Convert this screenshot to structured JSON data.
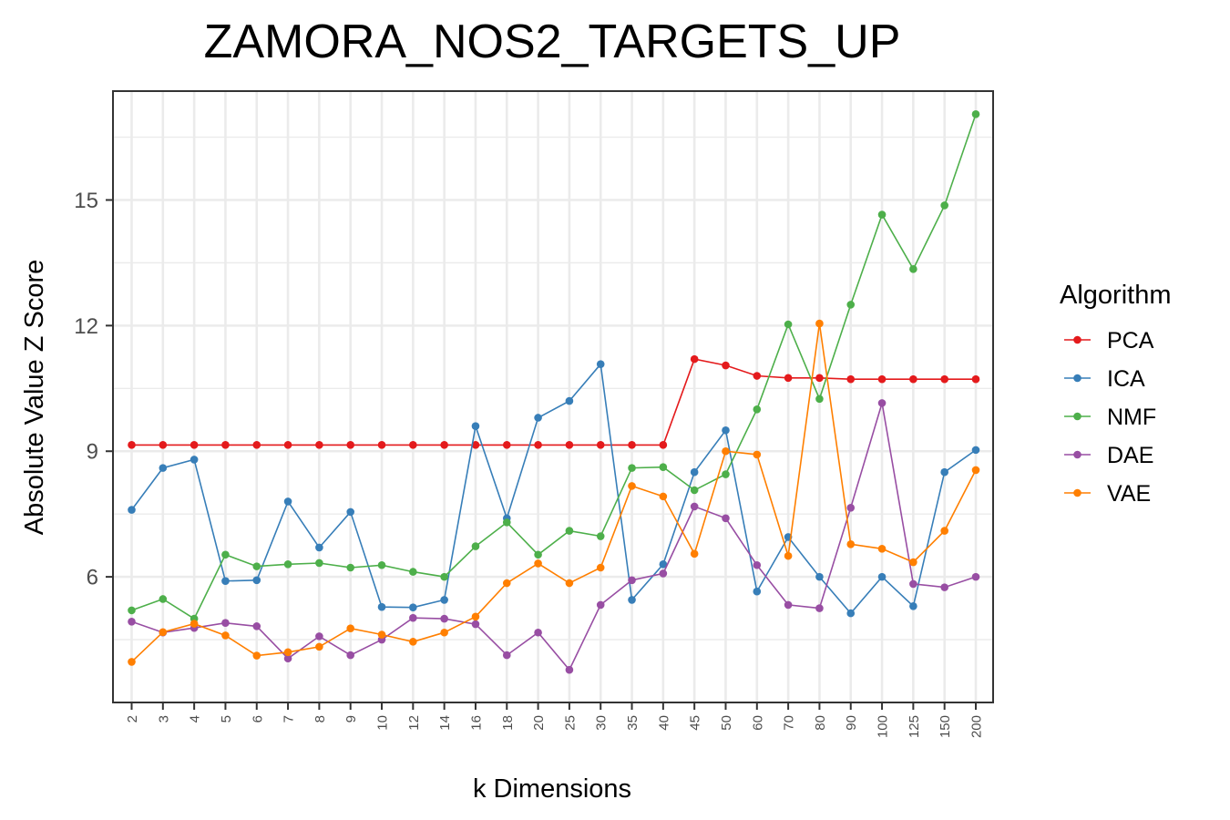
{
  "chart_data": {
    "type": "line",
    "title": "ZAMORA_NOS2_TARGETS_UP",
    "xlabel": "k Dimensions",
    "ylabel": "Absolute Value Z Score",
    "categories": [
      "2",
      "3",
      "4",
      "5",
      "6",
      "7",
      "8",
      "9",
      "10",
      "12",
      "14",
      "16",
      "18",
      "20",
      "25",
      "30",
      "35",
      "40",
      "45",
      "50",
      "60",
      "70",
      "80",
      "90",
      "100",
      "125",
      "150",
      "200"
    ],
    "ylim": [
      3.0,
      17.6
    ],
    "yticks": [
      6,
      9,
      12,
      15
    ],
    "grid": true,
    "legend": {
      "title": "Algorithm",
      "position": "right"
    },
    "series": [
      {
        "name": "PCA",
        "color": "#e41a1c",
        "values": [
          9.15,
          9.15,
          9.15,
          9.15,
          9.15,
          9.15,
          9.15,
          9.15,
          9.15,
          9.15,
          9.15,
          9.15,
          9.15,
          9.15,
          9.15,
          9.15,
          9.15,
          9.15,
          11.2,
          11.05,
          10.8,
          10.75,
          10.75,
          10.72,
          10.72,
          10.72,
          10.72,
          10.72
        ]
      },
      {
        "name": "ICA",
        "color": "#377eb8",
        "values": [
          7.6,
          8.6,
          8.8,
          5.9,
          5.92,
          7.8,
          6.7,
          7.55,
          5.28,
          5.27,
          5.45,
          9.6,
          7.4,
          9.8,
          10.2,
          11.08,
          5.45,
          6.3,
          8.5,
          9.5,
          5.65,
          6.95,
          6.0,
          5.13,
          6.0,
          5.3,
          8.5,
          9.03
        ]
      },
      {
        "name": "NMF",
        "color": "#4daf4a",
        "values": [
          5.2,
          5.47,
          5.0,
          6.53,
          6.25,
          6.3,
          6.33,
          6.22,
          6.28,
          6.12,
          6.0,
          6.73,
          7.3,
          6.53,
          7.1,
          6.97,
          8.6,
          8.62,
          8.07,
          8.45,
          10.0,
          12.03,
          10.25,
          12.5,
          14.65,
          13.35,
          14.87,
          17.05
        ]
      },
      {
        "name": "DAE",
        "color": "#984ea3",
        "values": [
          4.93,
          4.67,
          4.78,
          4.9,
          4.82,
          4.05,
          4.58,
          4.13,
          4.5,
          5.02,
          5.0,
          4.87,
          4.13,
          4.67,
          3.78,
          5.33,
          5.92,
          6.08,
          7.68,
          7.4,
          6.28,
          5.33,
          5.25,
          7.65,
          10.15,
          5.83,
          5.75,
          6.0
        ]
      },
      {
        "name": "VAE",
        "color": "#ff7f00",
        "values": [
          3.97,
          4.68,
          4.88,
          4.6,
          4.12,
          4.2,
          4.33,
          4.77,
          4.62,
          4.45,
          4.67,
          5.05,
          5.85,
          6.32,
          5.85,
          6.22,
          8.17,
          7.92,
          6.55,
          9.0,
          8.92,
          6.5,
          12.05,
          6.78,
          6.67,
          6.35,
          7.1,
          8.55
        ]
      }
    ]
  }
}
